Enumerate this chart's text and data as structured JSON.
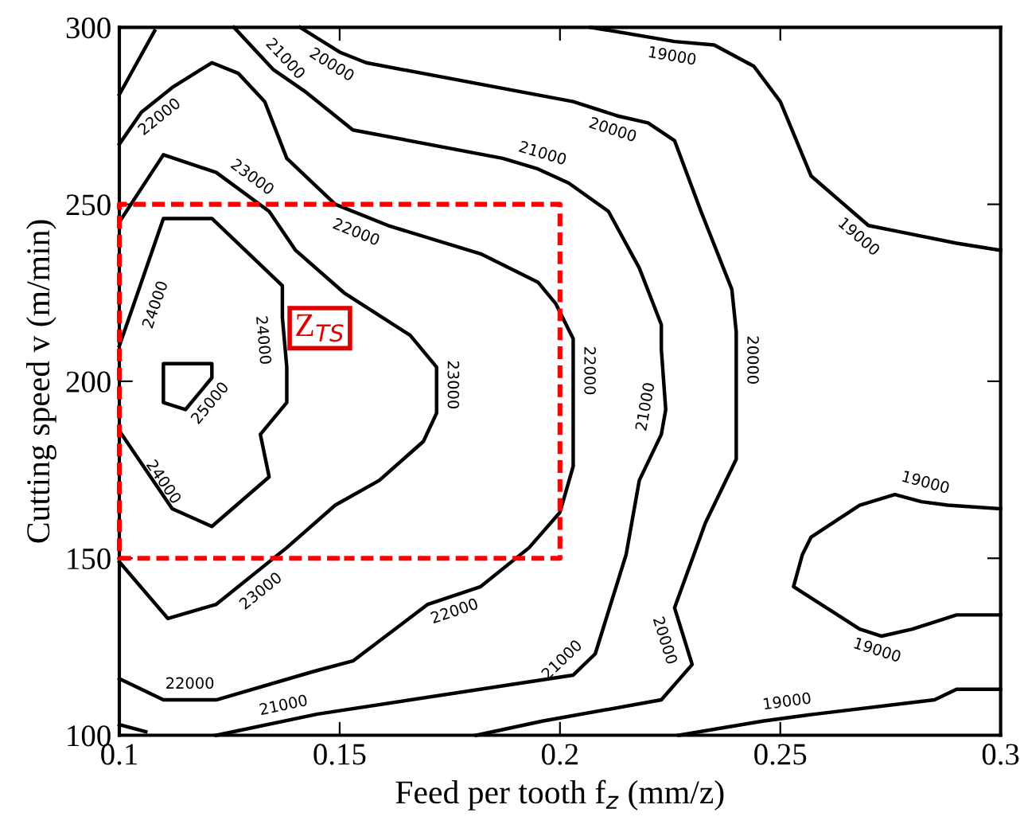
{
  "chart_data": {
    "type": "line",
    "xlabel": "Feed per tooth f$_{z}$ (mm/z)",
    "ylabel": "Cutting speed v (m/min)",
    "xlim": [
      0.1,
      0.3
    ],
    "ylim": [
      100,
      300
    ],
    "xticks": [
      0.1,
      0.15,
      0.2,
      0.25,
      0.3
    ],
    "yticks": [
      100,
      150,
      200,
      250,
      300
    ],
    "grid": false,
    "legend": false,
    "marker": "none",
    "series": [
      {
        "color": "#000000",
        "line_style": "solid",
        "x": [
          0.1,
          0.105,
          0.112,
          0.121,
          0.127,
          0.133,
          0.138,
          0.149,
          0.161,
          0.182,
          0.195,
          0.199,
          0.203,
          0.203,
          0.203,
          0.2,
          0.193,
          0.182,
          0.17,
          0.153,
          0.144,
          0.122,
          0.11,
          0.1
        ],
        "values": [
          267,
          276,
          283,
          290,
          287,
          279,
          263,
          250,
          244,
          236,
          228,
          222,
          212,
          200,
          176,
          163,
          153,
          142,
          137,
          121,
          118,
          110,
          110,
          116
        ]
      },
      {
        "color": "#000000",
        "line_style": "solid",
        "x": [
          0.126,
          0.135,
          0.142,
          0.153,
          0.187,
          0.195,
          0.202,
          0.211,
          0.218,
          0.223,
          0.223,
          0.224,
          0.223,
          0.218,
          0.215,
          0.208,
          0.203,
          0.145,
          0.122
        ],
        "values": [
          300,
          288,
          282,
          271,
          263,
          260,
          256,
          248,
          232,
          216,
          209,
          192,
          185,
          172,
          151,
          123,
          117,
          106,
          100
        ]
      },
      {
        "color": "#000000",
        "line_style": "solid",
        "x": [
          0.141,
          0.15,
          0.156,
          0.203,
          0.213,
          0.22,
          0.226,
          0.232,
          0.239,
          0.24,
          0.24,
          0.24,
          0.233,
          0.226,
          0.23,
          0.223,
          0.196,
          0.181
        ],
        "values": [
          300,
          293,
          290,
          279,
          275,
          273,
          268,
          248,
          226,
          214,
          200,
          178,
          160,
          136,
          120,
          110,
          104,
          100
        ]
      },
      {
        "color": "#000000",
        "line_style": "solid",
        "x": [
          0.207,
          0.226,
          0.235,
          0.244,
          0.25,
          0.257,
          0.27,
          0.278,
          0.29,
          0.3
        ],
        "values": [
          300,
          296,
          295,
          289,
          279,
          258,
          244,
          242,
          239,
          237
        ]
      },
      {
        "color": "#000000",
        "line_style": "solid",
        "x": [
          0.3,
          0.288,
          0.282,
          0.276,
          0.268,
          0.257,
          0.255,
          0.253,
          0.268,
          0.273,
          0.28,
          0.29,
          0.3
        ],
        "values": [
          164,
          165,
          166,
          168,
          165,
          156,
          151,
          142,
          130,
          128,
          130,
          134,
          134
        ]
      },
      {
        "color": "#000000",
        "line_style": "solid",
        "x": [
          0.227,
          0.246,
          0.252,
          0.258,
          0.285,
          0.29,
          0.3
        ],
        "values": [
          100,
          104,
          105,
          106,
          110,
          113,
          113
        ]
      },
      {
        "color": "#000000",
        "line_style": "solid",
        "x": [
          0.1,
          0.11,
          0.122,
          0.134,
          0.14,
          0.151,
          0.166,
          0.172,
          0.172,
          0.169,
          0.159,
          0.149,
          0.138,
          0.122,
          0.111,
          0.1
        ],
        "values": [
          245,
          264,
          259,
          248,
          237,
          225,
          213,
          204,
          191,
          183,
          172,
          165,
          153,
          137,
          133,
          149
        ]
      },
      {
        "color": "#000000",
        "line_style": "solid",
        "x": [
          0.1,
          0.105,
          0.11,
          0.121,
          0.137,
          0.137,
          0.138,
          0.138,
          0.132,
          0.134,
          0.121,
          0.112,
          0.1
        ],
        "values": [
          210,
          228,
          246,
          246,
          227,
          218,
          204,
          194,
          185,
          173,
          159,
          164,
          186
        ]
      },
      {
        "color": "#000000",
        "line_style": "solid",
        "x": [
          0.11,
          0.11,
          0.121,
          0.121,
          0.115,
          0.11,
          0.11
        ],
        "values": [
          204,
          205,
          205,
          201,
          192,
          194,
          203
        ]
      },
      {
        "color": "#000000",
        "line_style": "solid",
        "x": [
          0.1,
          0.104,
          0.108
        ],
        "values": [
          281,
          290,
          299
        ]
      },
      {
        "color": "#000000",
        "line_style": "solid",
        "x": [
          0.1,
          0.106
        ],
        "values": [
          103,
          101
        ]
      },
      {
        "color": "#ff0000",
        "line_style": "dashed",
        "x": [
          0.15,
          0.1,
          0.1,
          0.2,
          0.2,
          0.151
        ],
        "values": [
          150,
          150,
          250,
          250,
          150,
          150
        ]
      }
    ],
    "annotations": [
      {
        "text": "22000",
        "x": 0.107,
        "y": 278
      },
      {
        "text": "22000",
        "x": 0.155,
        "y": 246
      },
      {
        "text": "22000",
        "x": 0.203,
        "y": 203
      },
      {
        "text": "22000",
        "x": 0.175,
        "y": 139
      },
      {
        "text": "22000",
        "x": 0.116,
        "y": 110
      },
      {
        "text": "21000",
        "x": 0.135,
        "y": 288
      },
      {
        "text": "21000",
        "x": 0.195,
        "y": 260
      },
      {
        "text": "21000",
        "x": 0.223,
        "y": 192
      },
      {
        "text": "21000",
        "x": 0.203,
        "y": 118
      },
      {
        "text": "21000",
        "x": 0.138,
        "y": 104
      },
      {
        "text": "20000",
        "x": 0.15,
        "y": 293
      },
      {
        "text": "20000",
        "x": 0.213,
        "y": 275
      },
      {
        "text": "20000",
        "x": 0.24,
        "y": 206
      },
      {
        "text": "20000",
        "x": 0.227,
        "y": 128
      },
      {
        "text": "19000",
        "x": 0.226,
        "y": 296
      },
      {
        "text": "19000",
        "x": 0.27,
        "y": 244
      },
      {
        "text": "19000",
        "x": 0.282,
        "y": 167
      },
      {
        "text": "19000",
        "x": 0.273,
        "y": 128
      },
      {
        "text": "19000",
        "x": 0.252,
        "y": 105
      },
      {
        "text": "23000",
        "x": 0.128,
        "y": 254
      },
      {
        "text": "23000",
        "x": 0.172,
        "y": 199
      },
      {
        "text": "23000",
        "x": 0.13,
        "y": 144
      },
      {
        "text": "24000",
        "x": 0.105,
        "y": 223
      },
      {
        "text": "24000",
        "x": 0.136,
        "y": 212
      },
      {
        "text": "24000",
        "x": 0.107,
        "y": 169
      },
      {
        "text": "25000",
        "x": 0.118,
        "y": 196.5
      },
      {
        "text": "Z$_{TS}$",
        "x": 0.1455,
        "y": 215
      }
    ]
  }
}
